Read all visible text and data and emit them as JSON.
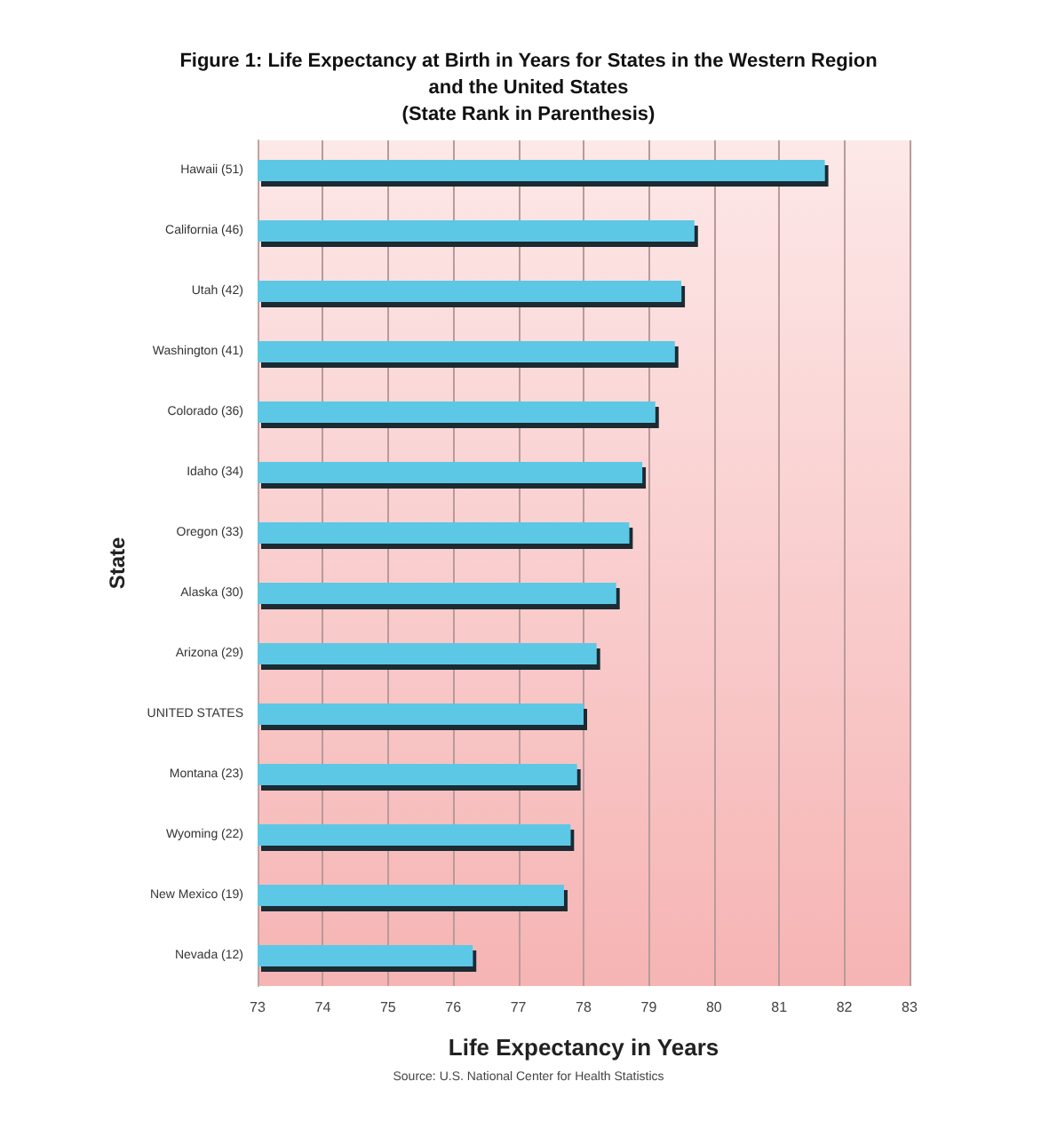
{
  "chart_data": {
    "type": "bar",
    "orientation": "horizontal",
    "title": "Figure 1: Life Expectancy at Birth in Years for States in the Western Region\nand the United States\n(State Rank in Parenthesis)",
    "categories": [
      "Hawaii (51)",
      "California (46)",
      "Utah (42)",
      "Washington (41)",
      "Colorado (36)",
      "Idaho (34)",
      "Oregon (33)",
      "Alaska (30)",
      "Arizona (29)",
      "UNITED STATES",
      "Montana (23)",
      "Wyoming (22)",
      "New Mexico (19)",
      "Nevada (12)"
    ],
    "values": [
      81.7,
      79.7,
      79.5,
      79.4,
      79.1,
      78.9,
      78.7,
      78.5,
      78.2,
      78.0,
      77.9,
      77.8,
      77.7,
      76.3
    ],
    "color": "#5bc8e6",
    "xlim": [
      73,
      83
    ],
    "xticks": [
      73,
      74,
      75,
      76,
      77,
      78,
      79,
      80,
      81,
      82,
      83
    ],
    "grid": "x",
    "xlabel": "Life Expectancy in Years",
    "ylabel": "State",
    "annotations": [
      "Source: U.S. National Center for Health Statistics"
    ]
  }
}
